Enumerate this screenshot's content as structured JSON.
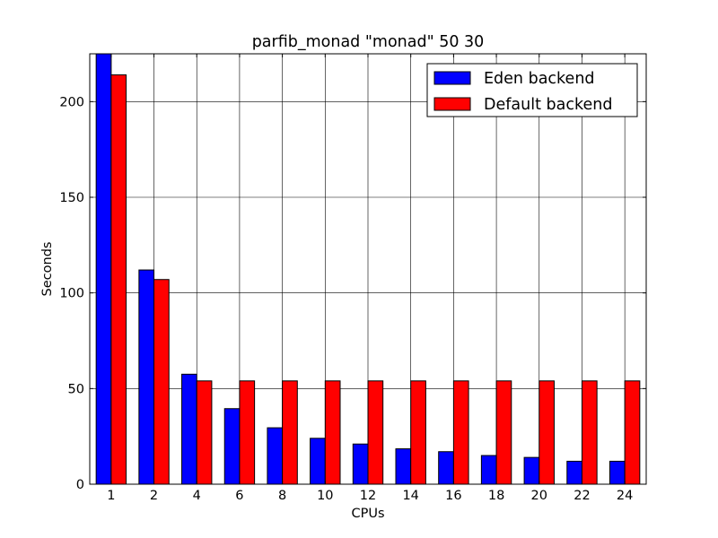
{
  "chart_data": {
    "type": "bar",
    "title": "parfib_monad \"monad\" 50 30",
    "xlabel": "CPUs",
    "ylabel": "Seconds",
    "ylim": [
      0,
      225
    ],
    "grid": true,
    "legend_position": "top-right",
    "categories": [
      "1",
      "2",
      "4",
      "6",
      "8",
      "10",
      "12",
      "14",
      "16",
      "18",
      "20",
      "22",
      "24"
    ],
    "y_ticks": [
      0,
      50,
      100,
      150,
      200
    ],
    "series": [
      {
        "name": "Eden backend",
        "color": "#0000ff",
        "values": [
          225,
          112,
          57.5,
          39.5,
          29.5,
          24,
          21,
          18.5,
          17,
          15,
          14,
          12,
          12
        ]
      },
      {
        "name": "Default backend",
        "color": "#ff0000",
        "values": [
          214,
          107,
          54,
          54,
          54,
          54,
          54,
          54,
          54,
          54,
          54,
          54,
          54
        ]
      }
    ]
  }
}
